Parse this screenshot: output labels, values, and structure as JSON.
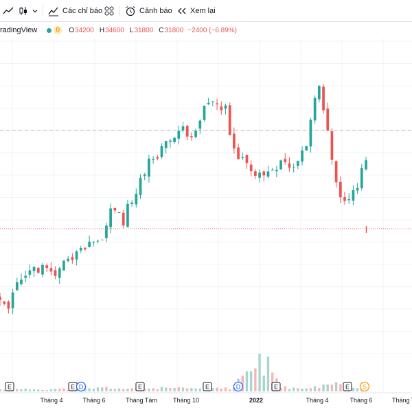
{
  "toolbar": {
    "indicators_label": "Các chỉ báo",
    "alerts_label": "Cảnh báo",
    "replay_label": "Xem lại",
    "chart_type_icon": "line-chart-icon",
    "candles_icon": "candlestick-icon",
    "dropdown_icon": "chevron-down-icon",
    "indicators_icon": "indicators-icon",
    "templates_icon": "templates-grid-icon",
    "alert_icon": "alarm-clock-icon",
    "replay_icon": "rewind-icon"
  },
  "legend": {
    "source": "radingView",
    "status_badge": "D",
    "open_label": "O",
    "open_value": "34200",
    "high_label": "H",
    "high_value": "34600",
    "low_label": "L",
    "low_value": "31800",
    "close_label": "C",
    "close_value": "31800",
    "change_text": "−2400 (−6.89%)"
  },
  "colors": {
    "up": "#26a69a",
    "down": "#ef5350",
    "up_volume": "#a8d5cf",
    "down_volume": "#f5b7b5",
    "event_border": "#131722",
    "dividend": "#2962ff",
    "split": "#ff9800"
  },
  "chart_data": {
    "type": "candlestick",
    "grid": true,
    "x_tick_labels": [
      "Tháng 4",
      "Tháng 6",
      "Tháng Tám",
      "Tháng 10",
      "2022",
      "Tháng 4",
      "Tháng 6",
      "Tháng T"
    ],
    "ylim": [
      15000,
      50000
    ],
    "reference_lines": [
      {
        "value": 40000,
        "style": "dashed",
        "color": "#b2b5be"
      },
      {
        "value": 29000,
        "style": "dotted",
        "color": "#ef5350"
      }
    ],
    "close_path": [
      [
        0,
        21300
      ],
      [
        2,
        20400
      ],
      [
        3,
        22200
      ],
      [
        5,
        23400
      ],
      [
        7,
        24500
      ],
      [
        8,
        24900
      ],
      [
        9,
        24300
      ],
      [
        10,
        24800
      ],
      [
        11,
        24600
      ],
      [
        12,
        24000
      ],
      [
        13,
        23800
      ],
      [
        14,
        24400
      ],
      [
        15,
        25500
      ],
      [
        16,
        25900
      ],
      [
        17,
        25500
      ],
      [
        19,
        26600
      ],
      [
        20,
        26600
      ],
      [
        21,
        27100
      ],
      [
        23,
        27500
      ],
      [
        24,
        28000
      ],
      [
        25,
        29100
      ],
      [
        26,
        31400
      ],
      [
        27,
        31200
      ],
      [
        28,
        30800
      ],
      [
        29,
        29500
      ],
      [
        30,
        31400
      ],
      [
        31,
        31700
      ],
      [
        33,
        34500
      ],
      [
        35,
        36500
      ],
      [
        37,
        37300
      ],
      [
        38,
        38000
      ],
      [
        39,
        38800
      ],
      [
        41,
        39100
      ],
      [
        42,
        39600
      ],
      [
        43,
        40100
      ],
      [
        44,
        39700
      ],
      [
        45,
        39600
      ],
      [
        46,
        40300
      ],
      [
        47,
        40800
      ],
      [
        48,
        42500
      ],
      [
        50,
        43200
      ],
      [
        52,
        42300
      ],
      [
        53,
        42400
      ],
      [
        54,
        39500
      ],
      [
        55,
        37600
      ],
      [
        56,
        36700
      ],
      [
        57,
        36800
      ],
      [
        58,
        36100
      ],
      [
        59,
        35700
      ],
      [
        60,
        35200
      ],
      [
        62,
        35000
      ],
      [
        63,
        35400
      ],
      [
        65,
        36000
      ],
      [
        66,
        36800
      ],
      [
        67,
        36500
      ],
      [
        68,
        35800
      ],
      [
        69,
        36000
      ],
      [
        70,
        36500
      ],
      [
        71,
        37600
      ],
      [
        72,
        38500
      ],
      [
        73,
        41200
      ],
      [
        74,
        44000
      ],
      [
        75,
        44900
      ],
      [
        76,
        42000
      ],
      [
        77,
        40000
      ],
      [
        78,
        37000
      ],
      [
        79,
        34500
      ],
      [
        80,
        32500
      ],
      [
        81,
        32000
      ],
      [
        82,
        32500
      ],
      [
        83,
        33000
      ],
      [
        84,
        33500
      ],
      [
        85,
        35500
      ],
      [
        86,
        37000
      ]
    ],
    "volume_path": [
      [
        0,
        0.05
      ],
      [
        12,
        0.06
      ],
      [
        20,
        0.07
      ],
      [
        25,
        0.1
      ],
      [
        30,
        0.06
      ],
      [
        35,
        0.08
      ],
      [
        40,
        0.09
      ],
      [
        45,
        0.07
      ],
      [
        50,
        0.1
      ],
      [
        55,
        0.08
      ],
      [
        60,
        1.0
      ],
      [
        61,
        0.45
      ],
      [
        63,
        0.8
      ],
      [
        66,
        0.12
      ],
      [
        70,
        0.07
      ],
      [
        75,
        0.12
      ],
      [
        80,
        0.22
      ],
      [
        86,
        0.06
      ]
    ],
    "volume_spikes": [
      [
        61,
        1.0
      ],
      [
        62,
        0.42
      ],
      [
        63,
        0.92
      ]
    ],
    "events": [
      {
        "type": "earnings",
        "label": "E"
      },
      {
        "type": "earnings",
        "label": "E"
      },
      {
        "type": "dividend",
        "label": "D"
      },
      {
        "type": "earnings",
        "label": "E"
      },
      {
        "type": "earnings",
        "label": "E"
      },
      {
        "type": "dividend",
        "label": "D"
      },
      {
        "type": "earnings",
        "label": "E"
      },
      {
        "type": "earnings",
        "label": "E"
      },
      {
        "type": "split",
        "label": "S"
      }
    ]
  }
}
